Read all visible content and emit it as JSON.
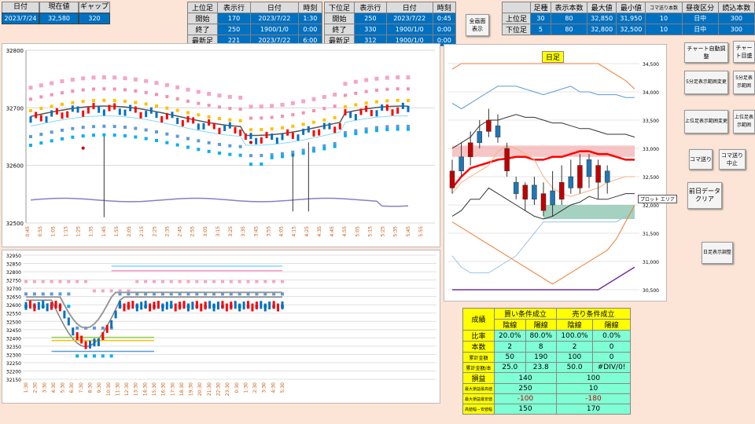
{
  "top_left": {
    "headers": [
      "日付",
      "現在値",
      "ギャップ幅"
    ],
    "values": [
      "2023/7/24",
      "32,580",
      "320"
    ]
  },
  "upper_tbl": {
    "headers": [
      "上位足",
      "表示行",
      "日付",
      "時刻"
    ],
    "rows": [
      [
        "開始",
        "170",
        "2023/7/22",
        "1:30"
      ],
      [
        "終了",
        "250",
        "1900/1/0",
        "0:00"
      ],
      [
        "最新足",
        "221",
        "2023/7/22",
        "6:00"
      ]
    ]
  },
  "lower_tbl": {
    "headers": [
      "下位足",
      "表示行",
      "日付",
      "時刻"
    ],
    "rows": [
      [
        "開始",
        "250",
        "2023/7/22",
        "0:45"
      ],
      [
        "終了",
        "330",
        "1900/1/0",
        "0:00"
      ],
      [
        "最新足",
        "312",
        "1900/1/0",
        "0:00"
      ]
    ]
  },
  "fullscreen_btn": "全画面\n表示",
  "right_tbl": {
    "headers": [
      "",
      "足種",
      "表示本数",
      "最大値",
      "最小値",
      "コマ送り本数",
      "昼夜区分",
      "読込本数"
    ],
    "rows": [
      [
        "上位足",
        "30",
        "80",
        "32,850",
        "31,950",
        "10",
        "日中",
        "300"
      ],
      [
        "下位足",
        "5",
        "80",
        "32,800",
        "32,500",
        "10",
        "日中",
        "300"
      ]
    ]
  },
  "buttons": {
    "chart_auto": "チャート自動調整",
    "chart_step": "チャート目盛",
    "show5min": "5分足表示範囲変更",
    "show5min2": "5分足表示範囲",
    "upper_change": "上位足表示範囲変更",
    "upper_change2": "上位足表示範囲",
    "koma": "コマ送り",
    "koma_stop": "コマ送り\n中止",
    "clear": "前日データ\nクリア",
    "daily": "日足表示調整"
  },
  "daily_chart": {
    "label": "日足",
    "tooltip": "プロット エリア",
    "yticks": [
      "34,500",
      "34,000",
      "33,500",
      "33,000",
      "32,500",
      "32,000",
      "31,500",
      "31,000",
      "30,500"
    ]
  },
  "chart_upper": {
    "yticks": [
      "32800",
      "32700",
      "32600",
      "32500"
    ],
    "xticks": [
      "0:45",
      "0:55",
      "1:05",
      "1:15",
      "1:25",
      "1:35",
      "1:45",
      "1:55",
      "2:05",
      "2:15",
      "2:25",
      "2:35",
      "2:45",
      "2:55",
      "3:05",
      "3:15",
      "3:25",
      "3:35",
      "3:45",
      "3:55",
      "4:05",
      "4:15",
      "4:25",
      "4:35",
      "4:45",
      "4:55",
      "5:05",
      "5:15",
      "5:25",
      "5:35",
      "5:45",
      "5:55"
    ]
  },
  "chart_lower": {
    "yticks": [
      "32950",
      "32850",
      "32800",
      "32750",
      "32700",
      "32650",
      "32600",
      "32550",
      "32500",
      "32450",
      "32400",
      "32350",
      "32300",
      "32250",
      "32200",
      "32150"
    ],
    "xticks": [
      "1:30",
      "2:30",
      "3:30",
      "4:30",
      "5:30",
      "6:30",
      "7:30",
      "8:30",
      "9:30",
      "10:30",
      "11:30",
      "12:30",
      "13:30",
      "14:30",
      "15:30",
      "16:30",
      "17:30",
      "18:30",
      "19:30",
      "20:30",
      "21:30",
      "22:30",
      "23:30",
      "0:30",
      "1:30",
      "2:30",
      "3:30",
      "4:30",
      "5:30"
    ]
  },
  "stats": {
    "title": "成績",
    "buy": "買い条件成立",
    "sell": "売り条件成立",
    "sub": [
      "陰線",
      "陽線",
      "陰線",
      "陽線"
    ],
    "rows": [
      {
        "label": "比率",
        "vals": [
          "20.0%",
          "80.0%",
          "100.0%",
          "0.0%"
        ]
      },
      {
        "label": "本数",
        "vals": [
          "2",
          "8",
          "2",
          "0"
        ]
      },
      {
        "label": "累計金額",
        "vals": [
          "50",
          "190",
          "100",
          "0"
        ]
      },
      {
        "label": "累計金額/本",
        "vals": [
          "25.0",
          "23.8",
          "50.0",
          "#DIV/0!"
        ]
      }
    ],
    "rows2": [
      {
        "label": "損益",
        "buy": "140",
        "sell": "100",
        "neg": false
      },
      {
        "label": "最大損益最高値",
        "buy": "250",
        "sell": "10",
        "neg": false
      },
      {
        "label": "最大損益最安値",
        "buy": "-100",
        "sell": "-180",
        "neg": true
      },
      {
        "label": "高値幅－安値幅",
        "buy": "150",
        "sell": "170",
        "neg": false
      }
    ]
  }
}
